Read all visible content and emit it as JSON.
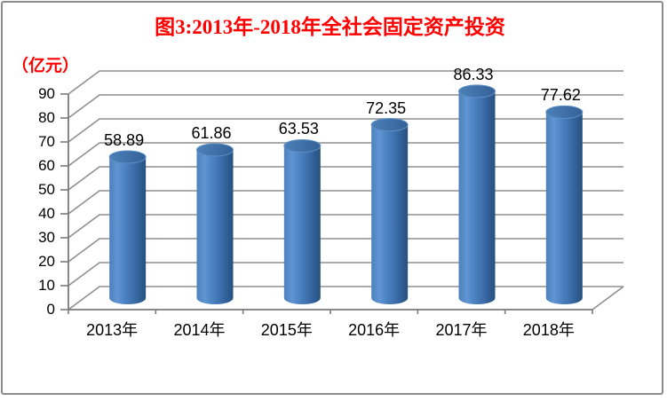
{
  "header": {
    "title": "图3:2013年-2018年全社会固定资产投资",
    "unit_label": "（亿元）"
  },
  "chart_data": {
    "type": "bar",
    "style": "3d-cylinder",
    "title": "图3:2013年-2018年全社会固定资产投资",
    "unit_label": "（亿元）",
    "categories": [
      "2013年",
      "2014年",
      "2015年",
      "2016年",
      "2017年",
      "2018年"
    ],
    "values": [
      58.89,
      61.86,
      63.53,
      72.35,
      86.33,
      77.62
    ],
    "data_labels": [
      "58.89",
      "61.86",
      "63.53",
      "72.35",
      "86.33",
      "77.62"
    ],
    "ylim": [
      0,
      90
    ],
    "ytick_interval": 10,
    "yticks": [
      0,
      10,
      20,
      30,
      40,
      50,
      60,
      70,
      80,
      90
    ],
    "grid": true,
    "legend_position": "none",
    "colors": {
      "title_text": "#ff0000",
      "unit_text": "#ff0000",
      "label_text": "#000000",
      "bar_light": "#6094d2",
      "bar_main": "#4a80c0",
      "bar_dark": "#27517e",
      "bar_top": "#3d70ac",
      "gridline": "#8f8f8f",
      "axis": "#7a7a7a",
      "border": "#8b8b8b",
      "background": "#ffffff"
    }
  }
}
